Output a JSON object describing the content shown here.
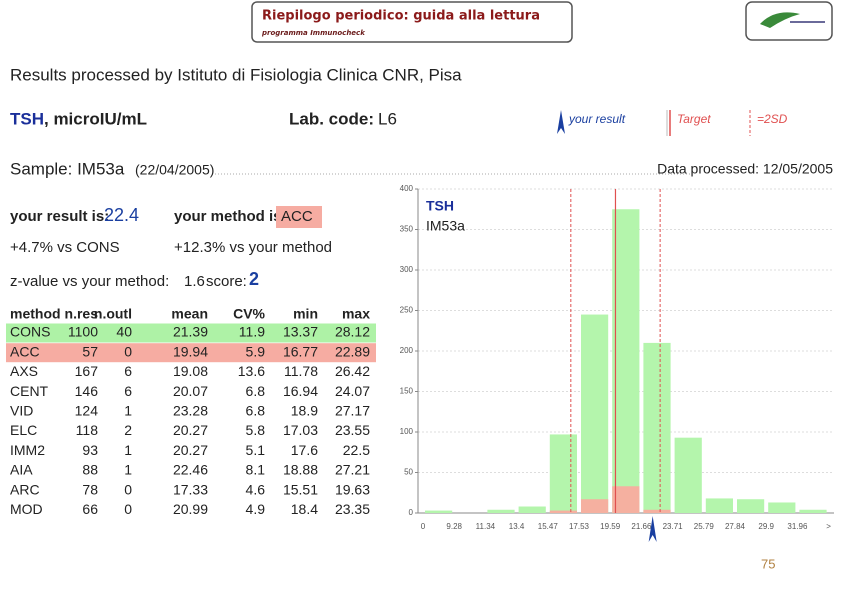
{
  "header": {
    "title": "Riepilogo periodico: guida alla lettura",
    "subtitle": "programma Immunocheck"
  },
  "report": {
    "lab_line": "Results processed by Istituto di Fisiologia Clinica CNR, Pisa",
    "analyte": "TSH",
    "unit": ", microIU/mL",
    "lab_code_label": "Lab. code:",
    "lab_code": "L6",
    "legend": {
      "result": "your result",
      "target": "Target",
      "sd": "=2SD"
    },
    "sample_label": "Sample: IM53a",
    "sample_date": "(22/04/2005)",
    "processed": "Data processed: 12/05/2005",
    "result_label": "your result is:",
    "result": 22.4,
    "method_label": "your method is:",
    "method": "ACC",
    "vs_cons": "+4.7% vs CONS",
    "vs_method": "+12.3% vs your method",
    "z_label": "z-value vs your method:",
    "z": 1.6,
    "score_label": "score:",
    "score": 2,
    "page": 75
  },
  "table": {
    "columns": [
      "method",
      "n.res",
      "n.outl",
      "mean",
      "CV%",
      "min",
      "max"
    ],
    "rows": [
      [
        "CONS",
        1100,
        40,
        21.39,
        11.9,
        13.37,
        28.12
      ],
      [
        "ACC",
        57,
        0,
        19.94,
        5.9,
        16.77,
        22.89
      ],
      [
        "AXS",
        167,
        6,
        19.08,
        13.6,
        11.78,
        26.42
      ],
      [
        "CENT",
        146,
        6,
        20.07,
        6.8,
        16.94,
        24.07
      ],
      [
        "VID",
        124,
        1,
        23.28,
        6.8,
        18.9,
        27.17
      ],
      [
        "ELC",
        118,
        2,
        20.27,
        5.8,
        17.03,
        23.55
      ],
      [
        "IMM2",
        93,
        1,
        20.27,
        5.1,
        17.6,
        22.5
      ],
      [
        "AIA",
        88,
        1,
        22.46,
        8.1,
        18.88,
        27.21
      ],
      [
        "ARC",
        78,
        0,
        17.33,
        4.6,
        15.51,
        19.63
      ],
      [
        "MOD",
        66,
        0,
        20.99,
        4.9,
        18.4,
        23.35
      ]
    ],
    "highlight_rows": [
      {
        "row": 0,
        "color": "#aef2a6"
      },
      {
        "row": 1,
        "color": "#f6aca2"
      }
    ]
  },
  "chart_data": {
    "type": "histogram",
    "title": "TSH",
    "subtitle": "IM53a",
    "bins": [
      0,
      9.28,
      11.34,
      13.4,
      15.47,
      17.53,
      19.59,
      21.66,
      23.71,
      25.79,
      27.84,
      29.9,
      31.96
    ],
    "overflow_label": ">",
    "series": [
      {
        "name": "CONS",
        "color": "#b4f5ac",
        "values": [
          3,
          0,
          4,
          8,
          97,
          245,
          375,
          210,
          93,
          18,
          17,
          13,
          4
        ]
      },
      {
        "name": "ACC",
        "color": "#f5b0a0",
        "values": [
          0,
          0,
          0,
          0,
          3,
          17,
          33,
          4,
          0,
          0,
          0,
          0,
          0
        ]
      }
    ],
    "ylim": [
      0,
      400
    ],
    "yticks": [
      0,
      50,
      100,
      150,
      200,
      250,
      300,
      350,
      400
    ],
    "grid": true,
    "target": 19.94,
    "sd_limits": [
      16.99,
      22.89
    ],
    "result": 22.4,
    "target_color": "#e05050",
    "result_color": "#1a3fa0"
  }
}
